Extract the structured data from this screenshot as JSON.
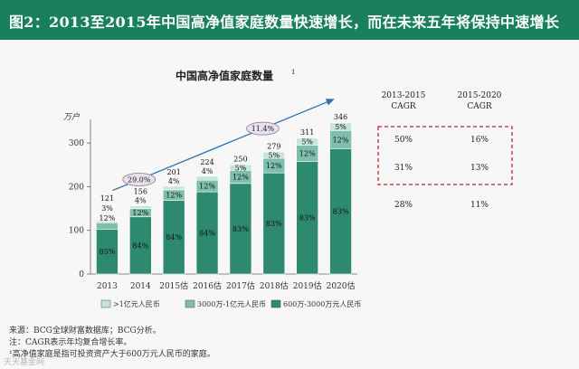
{
  "header": {
    "title": "图2：2013至2015年中国高净值家庭数量快速增长，而在未来五年将保持中速增长"
  },
  "chart_data": {
    "type": "bar",
    "stacked": true,
    "title": "中国高净值家庭数量",
    "title_superscript": "1",
    "ylabel": "万户",
    "ylim": [
      0,
      350
    ],
    "yticks": [
      0,
      100,
      200,
      300
    ],
    "categories": [
      "2013",
      "2014",
      "2015估",
      "2016估",
      "2017估",
      "2018估",
      "2019估",
      "2020估"
    ],
    "totals": [
      121,
      156,
      201,
      224,
      250,
      279,
      311,
      346
    ],
    "series": [
      {
        "name": "600万-3000万元人民币",
        "color": "#2e8a6e",
        "labels": [
          "85%",
          "84%",
          "84%",
          "84%",
          "83%",
          "83%",
          "83%",
          "83%"
        ],
        "values": [
          102.9,
          131.0,
          168.8,
          188.2,
          207.5,
          231.6,
          258.1,
          287.2
        ]
      },
      {
        "name": "3000万-1亿元人民币",
        "color": "#7dbfac",
        "labels": [
          "12%",
          "12%",
          "12%",
          "12%",
          "12%",
          "12%",
          "12%",
          "12%"
        ],
        "values": [
          14.5,
          18.7,
          24.1,
          26.9,
          30.0,
          33.5,
          37.3,
          41.5
        ]
      },
      {
        "name": ">1亿元人民币",
        "color": "#c7e3da",
        "labels": [
          "3%",
          "4%",
          "4%",
          "4%",
          "5%",
          "5%",
          "5%",
          "5%"
        ],
        "values": [
          3.6,
          6.2,
          8.0,
          9.0,
          12.5,
          13.9,
          15.6,
          17.3
        ]
      }
    ],
    "trend_arrow": {
      "from": "2013",
      "to": "2020估"
    },
    "cagr_annotations": [
      {
        "label": "29.0%",
        "position": "between 2013 and 2014"
      },
      {
        "label": "11.4%",
        "position": "between 2017估 and 2018估"
      }
    ],
    "cagr_table": {
      "headers": [
        "2013-2015\nCAGR",
        "2015-2020\nCAGR"
      ],
      "rows": [
        [
          "50%",
          "16%"
        ],
        [
          "31%",
          "13%"
        ],
        [
          "28%",
          "11%"
        ]
      ],
      "highlighted_rows": [
        0,
        1
      ]
    },
    "legend_position": "bottom-center"
  },
  "notes": [
    "来源：BCG全球财富数据库；BCG分析。",
    "注：CAGR表示年均复合增长率。",
    "¹高净值家庭是指可投资资产大于600万元人民币的家庭。"
  ],
  "watermark": "天天基金网"
}
